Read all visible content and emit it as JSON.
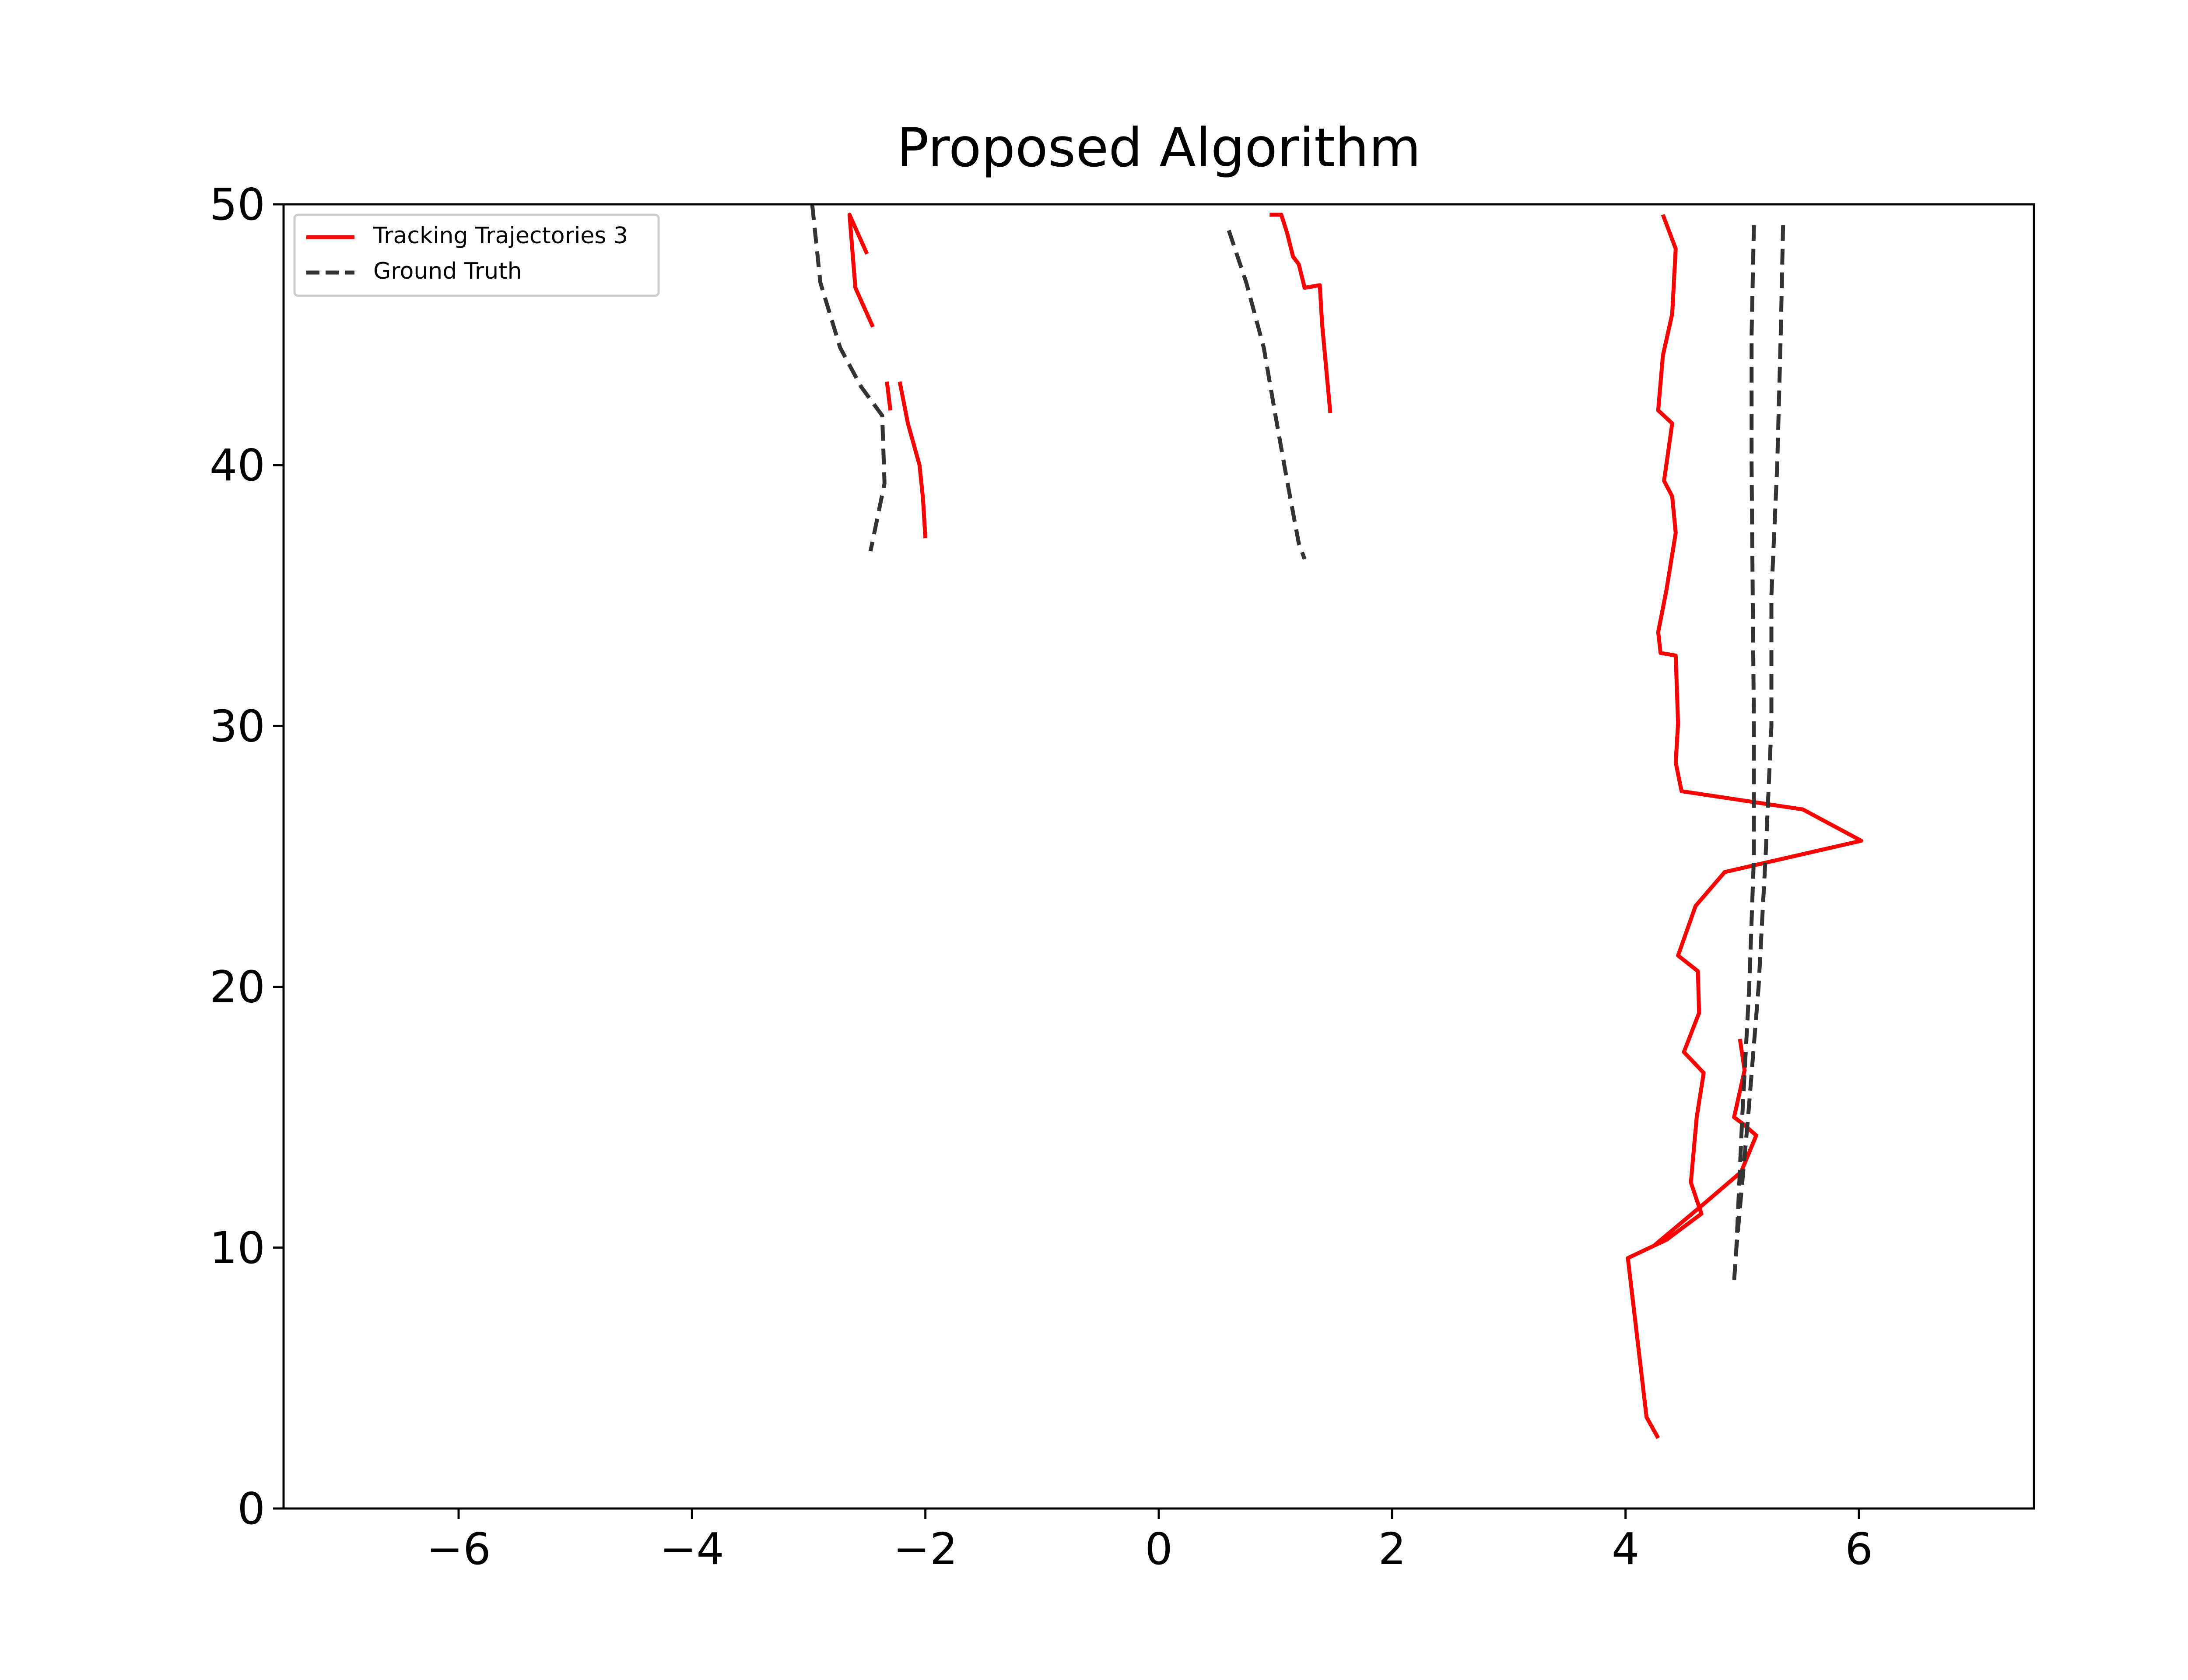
{
  "chart_data": {
    "type": "line",
    "title": "Proposed Algorithm",
    "xlabel": "",
    "ylabel": "",
    "xlim": [
      -7.5,
      7.5
    ],
    "ylim": [
      0,
      50
    ],
    "xticks": [
      -6,
      -4,
      -2,
      0,
      2,
      4,
      6
    ],
    "xtick_labels": [
      "−6",
      "−4",
      "−2",
      "0",
      "2",
      "4",
      "6"
    ],
    "yticks": [
      0,
      10,
      20,
      30,
      40,
      50
    ],
    "ytick_labels": [
      "0",
      "10",
      "20",
      "30",
      "40",
      "50"
    ],
    "grid": false,
    "legend_position": "top-left",
    "legend": [
      {
        "label": "Tracking Trajectories 3",
        "color": "#ff0000",
        "style": "solid"
      },
      {
        "label": "Ground Truth",
        "color": "#333333",
        "style": "dashed"
      }
    ],
    "series": [
      {
        "group": "Tracking Trajectories 3",
        "color": "#ff0000",
        "style": "solid",
        "points": [
          [
            -2.5,
            48.1
          ],
          [
            -2.65,
            49.6
          ],
          [
            -2.6,
            46.8
          ],
          [
            -2.45,
            45.3
          ]
        ]
      },
      {
        "group": "Tracking Trajectories 3",
        "color": "#ff0000",
        "style": "solid",
        "points": [
          [
            -2.33,
            43.2
          ],
          [
            -2.3,
            42.1
          ]
        ]
      },
      {
        "group": "Tracking Trajectories 3",
        "color": "#ff0000",
        "style": "solid",
        "points": [
          [
            -2.22,
            43.2
          ],
          [
            -2.15,
            41.6
          ],
          [
            -2.05,
            40.0
          ],
          [
            -2.02,
            38.7
          ],
          [
            -2.0,
            37.2
          ]
        ]
      },
      {
        "group": "Tracking Trajectories 3",
        "color": "#ff0000",
        "style": "solid",
        "points": [
          [
            0.95,
            49.6
          ],
          [
            1.05,
            49.6
          ],
          [
            1.1,
            48.9
          ],
          [
            1.15,
            48.0
          ],
          [
            1.2,
            47.7
          ],
          [
            1.25,
            46.8
          ],
          [
            1.38,
            46.9
          ],
          [
            1.4,
            45.4
          ],
          [
            1.47,
            42.0
          ]
        ]
      },
      {
        "group": "Tracking Trajectories 3",
        "color": "#ff0000",
        "style": "solid",
        "points": [
          [
            4.32,
            49.6
          ],
          [
            4.43,
            48.3
          ],
          [
            4.4,
            45.8
          ],
          [
            4.32,
            44.2
          ],
          [
            4.28,
            42.1
          ],
          [
            4.4,
            41.6
          ],
          [
            4.33,
            39.4
          ],
          [
            4.4,
            38.8
          ],
          [
            4.43,
            37.4
          ],
          [
            4.35,
            35.2
          ],
          [
            4.28,
            33.6
          ],
          [
            4.3,
            32.8
          ],
          [
            4.43,
            32.7
          ],
          [
            4.45,
            30.1
          ],
          [
            4.43,
            28.6
          ],
          [
            4.48,
            27.5
          ],
          [
            5.52,
            26.8
          ],
          [
            6.02,
            25.6
          ],
          [
            4.85,
            24.4
          ],
          [
            4.6,
            23.1
          ],
          [
            4.45,
            21.2
          ],
          [
            4.62,
            20.6
          ],
          [
            4.63,
            19.0
          ],
          [
            4.5,
            17.5
          ],
          [
            4.67,
            16.7
          ],
          [
            4.61,
            15.0
          ],
          [
            4.56,
            12.5
          ],
          [
            4.65,
            11.3
          ],
          [
            4.35,
            10.3
          ],
          [
            4.02,
            9.6
          ],
          [
            4.18,
            3.5
          ],
          [
            4.28,
            2.7
          ]
        ]
      },
      {
        "group": "Tracking Trajectories 3",
        "color": "#ff0000",
        "style": "solid",
        "points": [
          [
            4.98,
            18.0
          ],
          [
            5.02,
            16.8
          ],
          [
            4.93,
            15.0
          ],
          [
            5.02,
            14.7
          ],
          [
            5.12,
            14.3
          ],
          [
            4.99,
            12.9
          ],
          [
            4.65,
            11.6
          ],
          [
            4.25,
            10.1
          ]
        ]
      },
      {
        "group": "Ground Truth",
        "color": "#333333",
        "style": "dashed",
        "points": [
          [
            -2.97,
            50.0
          ],
          [
            -2.9,
            47.0
          ],
          [
            -2.73,
            44.5
          ],
          [
            -2.55,
            43.0
          ],
          [
            -2.37,
            41.9
          ],
          [
            -2.35,
            39.3
          ],
          [
            -2.47,
            36.7
          ]
        ]
      },
      {
        "group": "Ground Truth",
        "color": "#333333",
        "style": "dashed",
        "points": [
          [
            0.6,
            49.0
          ],
          [
            0.75,
            47.0
          ],
          [
            0.9,
            44.5
          ],
          [
            1.0,
            41.9
          ],
          [
            1.1,
            39.4
          ],
          [
            1.2,
            37.0
          ],
          [
            1.25,
            36.4
          ]
        ]
      },
      {
        "group": "Ground Truth",
        "color": "#333333",
        "style": "dashed",
        "points": [
          [
            5.1,
            49.2
          ],
          [
            5.08,
            45.0
          ],
          [
            5.08,
            40.0
          ],
          [
            5.09,
            35.0
          ],
          [
            5.1,
            30.0
          ],
          [
            5.1,
            25.0
          ],
          [
            5.06,
            20.0
          ],
          [
            5.0,
            15.0
          ],
          [
            4.95,
            10.0
          ],
          [
            4.93,
            8.7
          ]
        ]
      },
      {
        "group": "Ground Truth",
        "color": "#333333",
        "style": "dashed",
        "points": [
          [
            5.35,
            49.2
          ],
          [
            5.33,
            45.0
          ],
          [
            5.3,
            40.0
          ],
          [
            5.25,
            35.0
          ],
          [
            5.25,
            30.0
          ],
          [
            5.2,
            25.0
          ],
          [
            5.14,
            20.0
          ],
          [
            5.05,
            15.0
          ],
          [
            4.95,
            10.0
          ]
        ]
      }
    ]
  }
}
